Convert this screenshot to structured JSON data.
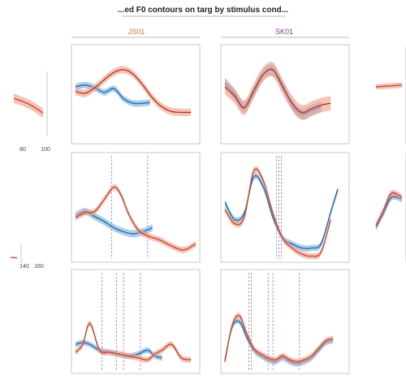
{
  "title": "...ed F0 contours on targ by stimulus cond...",
  "columns": [
    "JS01",
    "SK01"
  ],
  "column_colors": [
    "#d46f33",
    "#7b3d8a"
  ],
  "colors": {
    "series_a": "#1f6fb4",
    "series_a_band": "#7fb3de",
    "series_b": "#cc4a2c",
    "series_b_band": "#f2a08c",
    "mean_line": "#7a2a1a",
    "marker_blue": "#7d8fe0",
    "marker_red": "#dd7070",
    "panel_border": "#c8c8c8"
  },
  "left_ticks": {
    "row1": [
      "80",
      "100"
    ],
    "row2": [
      "140",
      "160"
    ]
  },
  "chart_data": {
    "type": "line",
    "title": "...ed F0 contours on targ by stimulus cond...",
    "grid": false,
    "layout": {
      "rows": 3,
      "columns": [
        "JS01",
        "SK01"
      ]
    },
    "x_domain": [
      0,
      100
    ],
    "y_domain": [
      0,
      100
    ],
    "panels": [
      {
        "column": "JS01",
        "row": 1,
        "series": [
          {
            "color": "blue",
            "band": 3.5,
            "x": [
              0,
              8,
              16,
              24,
              32,
              40,
              48,
              56,
              62
            ],
            "y": [
              58,
              60,
              57,
              52,
              56,
              45,
              40,
              40,
              41
            ]
          },
          {
            "color": "red",
            "band": 4,
            "x": [
              0,
              8,
              16,
              24,
              32,
              40,
              48,
              56,
              64,
              72,
              80,
              88,
              96
            ],
            "y": [
              53,
              51,
              57,
              66,
              74,
              77,
              72,
              60,
              46,
              36,
              31,
              30,
              30
            ]
          }
        ],
        "markers": []
      },
      {
        "column": "SK01",
        "row": 1,
        "series": [
          {
            "color": "blue",
            "band": 6,
            "x": [
              0,
              8,
              16,
              24,
              32,
              40,
              48,
              56,
              64,
              72,
              80
            ],
            "y": [
              62,
              50,
              36,
              52,
              72,
              76,
              60,
              38,
              28,
              32,
              36
            ]
          },
          {
            "color": "red",
            "band": 8,
            "x": [
              0,
              8,
              16,
              24,
              32,
              40,
              48,
              56,
              64,
              72,
              80,
              88
            ],
            "y": [
              58,
              48,
              35,
              54,
              72,
              77,
              58,
              40,
              30,
              34,
              38,
              40
            ]
          }
        ],
        "markers": []
      },
      {
        "column": "JS01",
        "row": 2,
        "series": [
          {
            "color": "blue",
            "band": 3.5,
            "x": [
              0,
              8,
              16,
              24,
              32,
              40,
              48,
              56,
              64
            ],
            "y": [
              42,
              46,
              41,
              36,
              30,
              26,
              24,
              26,
              30
            ]
          },
          {
            "color": "red",
            "band": 3,
            "x": [
              0,
              8,
              16,
              24,
              32,
              38,
              44,
              52,
              60,
              70,
              80,
              90,
              100
            ],
            "y": [
              40,
              45,
              46,
              58,
              70,
              62,
              44,
              28,
              22,
              18,
              12,
              8,
              14
            ]
          }
        ],
        "markers": [
          {
            "x": 30,
            "color": "blue"
          },
          {
            "x": 60,
            "color": "blue"
          }
        ]
      },
      {
        "column": "SK01",
        "row": 2,
        "series": [
          {
            "color": "blue",
            "band": 3,
            "x": [
              0,
              8,
              16,
              24,
              32,
              40,
              48,
              56,
              64,
              72,
              80,
              88,
              94
            ],
            "y": [
              55,
              38,
              44,
              80,
              70,
              40,
              20,
              14,
              10,
              10,
              14,
              45,
              68
            ]
          },
          {
            "color": "red",
            "band": 3,
            "x": [
              0,
              8,
              16,
              24,
              32,
              40,
              48,
              56,
              64,
              72,
              80,
              88
            ],
            "y": [
              48,
              34,
              40,
              86,
              76,
              44,
              20,
              10,
              4,
              2,
              6,
              38
            ]
          }
        ],
        "markers": [
          {
            "x": 43,
            "color": "blue"
          },
          {
            "x": 45,
            "color": "blue"
          },
          {
            "x": 47,
            "color": "red"
          }
        ]
      },
      {
        "column": "JS01",
        "row": 3,
        "series": [
          {
            "color": "blue",
            "band": 3,
            "x": [
              0,
              6,
              12,
              20,
              28,
              36,
              44,
              52,
              60,
              66,
              72
            ],
            "y": [
              26,
              28,
              26,
              20,
              18,
              16,
              14,
              16,
              20,
              14,
              12
            ]
          },
          {
            "color": "red",
            "band": 3,
            "x": [
              0,
              6,
              12,
              20,
              28,
              36,
              44,
              52,
              60,
              66,
              72,
              80,
              88,
              96
            ],
            "y": [
              18,
              26,
              48,
              20,
              18,
              16,
              14,
              12,
              10,
              16,
              20,
              26,
              12,
              10
            ]
          }
        ],
        "markers": [
          {
            "x": 22,
            "color": "blue"
          },
          {
            "x": 34,
            "color": "blue"
          },
          {
            "x": 40,
            "color": "red"
          },
          {
            "x": 54,
            "color": "red"
          }
        ]
      },
      {
        "column": "SK01",
        "row": 3,
        "series": [
          {
            "color": "blue",
            "band": 3,
            "x": [
              0,
              6,
              12,
              18,
              24,
              30,
              36,
              42,
              48,
              54,
              60,
              66,
              72,
              78,
              84,
              90
            ],
            "y": [
              10,
              44,
              50,
              34,
              20,
              14,
              10,
              8,
              12,
              8,
              6,
              8,
              12,
              20,
              28,
              30
            ]
          },
          {
            "color": "red",
            "band": 3,
            "x": [
              0,
              6,
              12,
              18,
              24,
              30,
              36,
              42,
              48,
              54,
              60,
              66,
              72,
              78,
              84,
              90
            ],
            "y": [
              8,
              46,
              56,
              38,
              22,
              16,
              12,
              10,
              14,
              10,
              8,
              10,
              14,
              22,
              30,
              32
            ]
          }
        ],
        "markers": [
          {
            "x": 20,
            "color": "blue"
          },
          {
            "x": 22,
            "color": "red"
          },
          {
            "x": 36,
            "color": "blue"
          },
          {
            "x": 40,
            "color": "red"
          },
          {
            "x": 62,
            "color": "blue"
          }
        ]
      },
      {
        "column": "partial-left",
        "row": 1,
        "series": [
          {
            "color": "red",
            "band": 8,
            "x": [
              0,
              50,
              100
            ],
            "y": [
              60,
              50,
              34
            ]
          }
        ],
        "markers": []
      },
      {
        "column": "partial-left",
        "row": 2,
        "series": [
          {
            "color": "red",
            "band": 2,
            "x": [
              0,
              100
            ],
            "y": [
              12,
              11
            ]
          }
        ],
        "markers": []
      },
      {
        "column": "partial-right",
        "row": 1,
        "series": [
          {
            "color": "red",
            "band": 3,
            "x": [
              0,
              100
            ],
            "y": [
              60,
              62
            ]
          }
        ],
        "markers": []
      },
      {
        "column": "partial-right",
        "row": 2,
        "series": [
          {
            "color": "blue",
            "band": 3,
            "x": [
              0,
              30,
              60,
              100
            ],
            "y": [
              30,
              45,
              60,
              58
            ]
          },
          {
            "color": "red",
            "band": 3,
            "x": [
              0,
              30,
              60,
              100
            ],
            "y": [
              32,
              48,
              64,
              60
            ]
          }
        ],
        "markers": []
      }
    ]
  }
}
